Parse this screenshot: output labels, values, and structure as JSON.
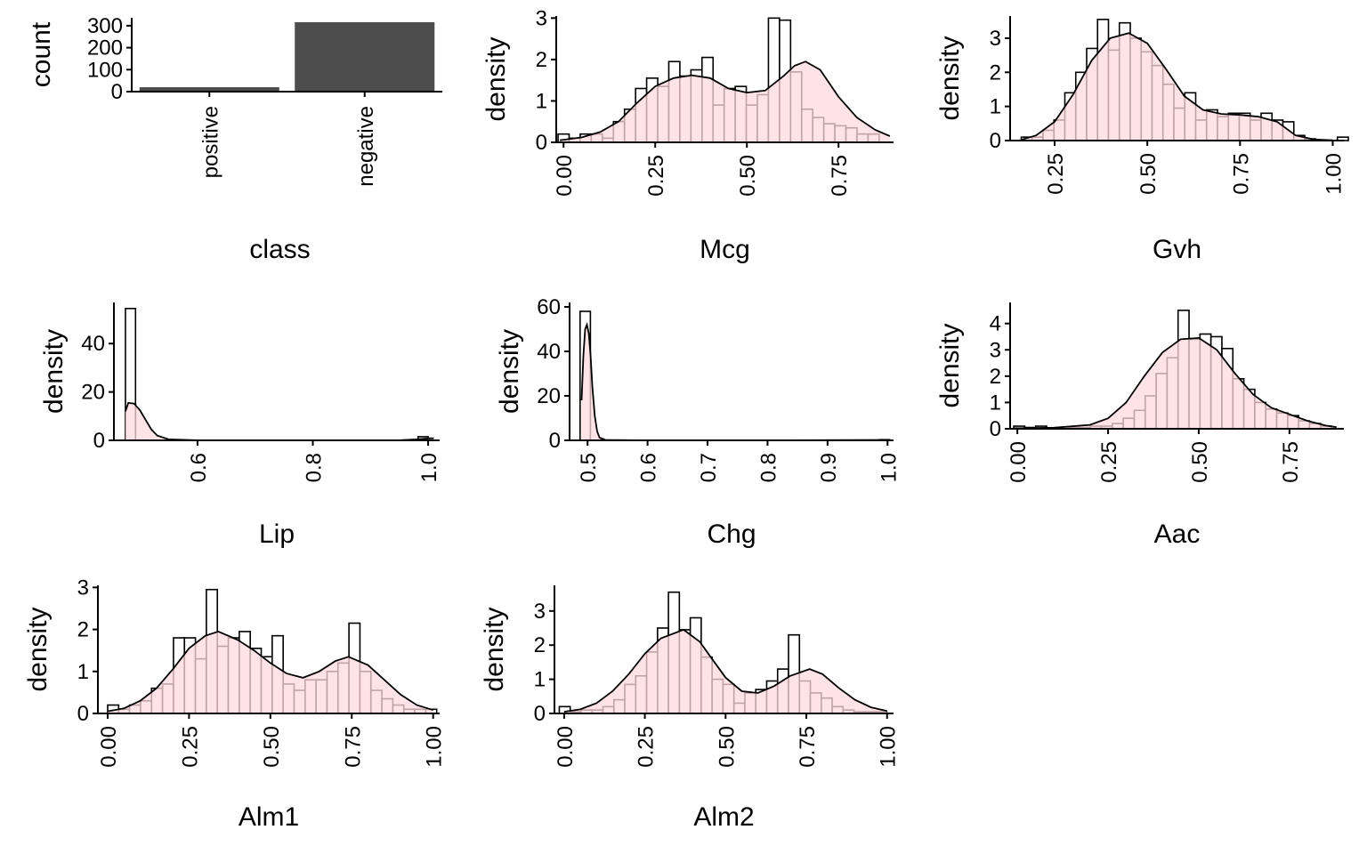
{
  "colors": {
    "bar_fill": "#4d4d4d",
    "hist_fill": "#ffffff",
    "hist_stroke": "#000000",
    "density_fill": "#ffd9dd",
    "axis": "#000000"
  },
  "chart_data": [
    {
      "type": "bar",
      "xlabel": "class",
      "ylabel": "count",
      "categories": [
        "positive",
        "negative"
      ],
      "values": [
        20,
        316
      ],
      "ylim": [
        0,
        336
      ],
      "yticks": [
        0,
        100,
        200,
        300
      ],
      "ytick_labels": [
        "0",
        "100",
        "200",
        "300"
      ],
      "grid": false
    },
    {
      "type": "histogram+density",
      "xlabel": "Mcg",
      "ylabel": "density",
      "xlim": [
        -0.02,
        0.9
      ],
      "ylim": [
        0,
        3.05
      ],
      "xticks": [
        0,
        0.25,
        0.5,
        0.75
      ],
      "xtick_labels": [
        "0.00",
        "0.25",
        "0.50",
        "0.75"
      ],
      "yticks": [
        0,
        1,
        2,
        3
      ],
      "ytick_labels": [
        "0",
        "1",
        "2",
        "3"
      ],
      "bin_start": -0.015,
      "bin_width": 0.0302,
      "hist": [
        0.2,
        0.1,
        0.2,
        0.2,
        0.1,
        0.5,
        0.8,
        1.3,
        1.55,
        1.35,
        1.95,
        1.6,
        1.75,
        2.05,
        0.9,
        1.3,
        1.35,
        0.9,
        1.15,
        3.0,
        2.95,
        1.7,
        0.8,
        0.6,
        0.45,
        0.4,
        0.35,
        0.2,
        0.2
      ],
      "density_x": [
        -0.01,
        0.05,
        0.1,
        0.15,
        0.2,
        0.25,
        0.3,
        0.35,
        0.4,
        0.45,
        0.5,
        0.55,
        0.6,
        0.63,
        0.66,
        0.7,
        0.75,
        0.8,
        0.85,
        0.89
      ],
      "density_y": [
        0.05,
        0.12,
        0.25,
        0.5,
        0.95,
        1.35,
        1.55,
        1.62,
        1.55,
        1.3,
        1.2,
        1.25,
        1.6,
        1.85,
        1.95,
        1.75,
        1.1,
        0.6,
        0.3,
        0.15
      ],
      "grid": false
    },
    {
      "type": "histogram+density",
      "xlabel": "Gvh",
      "ylabel": "density",
      "xlim": [
        0.13,
        1.03
      ],
      "ylim": [
        0,
        3.65
      ],
      "xticks": [
        0.25,
        0.5,
        0.75,
        1.0
      ],
      "xtick_labels": [
        "0.25",
        "0.50",
        "0.75",
        "1.00"
      ],
      "yticks": [
        0,
        1,
        2,
        3
      ],
      "ytick_labels": [
        "0",
        "1",
        "2",
        "3"
      ],
      "bin_start": 0.16,
      "bin_width": 0.0294,
      "hist": [
        0.1,
        0.1,
        0.3,
        0.6,
        1.4,
        2.0,
        2.7,
        3.55,
        2.65,
        3.45,
        3.0,
        2.6,
        2.2,
        1.65,
        0.95,
        1.4,
        0.6,
        0.9,
        0.7,
        0.8,
        0.8,
        0.6,
        0.8,
        0.6,
        0.55,
        0.15,
        0.05,
        0.0,
        0.0,
        0.1
      ],
      "density_x": [
        0.16,
        0.2,
        0.25,
        0.3,
        0.35,
        0.4,
        0.45,
        0.5,
        0.55,
        0.6,
        0.65,
        0.7,
        0.75,
        0.8,
        0.85,
        0.9,
        0.95,
        1.0
      ],
      "density_y": [
        0.02,
        0.15,
        0.55,
        1.35,
        2.35,
        3.0,
        3.15,
        2.85,
        2.1,
        1.3,
        0.9,
        0.78,
        0.75,
        0.7,
        0.55,
        0.15,
        0.03,
        0.01
      ],
      "grid": false
    },
    {
      "type": "histogram+density",
      "xlabel": "Lip",
      "ylabel": "density",
      "xlim": [
        0.455,
        1.02
      ],
      "ylim": [
        0,
        57
      ],
      "xticks": [
        0.6,
        0.8,
        1.0
      ],
      "xtick_labels": [
        "0.6",
        "0.8",
        "1.0"
      ],
      "yticks": [
        0,
        20,
        40
      ],
      "ytick_labels": [
        "0",
        "20",
        "40"
      ],
      "bin_start": 0.475,
      "bin_width": 0.0175,
      "hist": [
        54.5,
        0,
        0,
        0,
        0,
        0,
        0,
        0,
        0,
        0,
        0,
        0,
        0,
        0,
        0,
        0,
        0,
        0,
        0,
        0,
        0,
        0,
        0,
        0,
        0,
        0,
        0,
        0,
        0,
        1.5
      ],
      "density_x": [
        0.475,
        0.48,
        0.49,
        0.5,
        0.51,
        0.52,
        0.53,
        0.55,
        0.6,
        0.8,
        0.95,
        0.98,
        1.0,
        1.01
      ],
      "density_y": [
        12.0,
        15.5,
        15.2,
        12.5,
        8.5,
        4.5,
        2.0,
        0.4,
        0.05,
        0.0,
        0.05,
        0.4,
        0.8,
        0.9
      ],
      "grid": false
    },
    {
      "type": "histogram+density",
      "xlabel": "Chg",
      "ylabel": "density",
      "xlim": [
        0.47,
        1.01
      ],
      "ylim": [
        0,
        62
      ],
      "xticks": [
        0.5,
        0.6,
        0.7,
        0.8,
        0.9,
        1.0
      ],
      "xtick_labels": [
        "0.5",
        "0.6",
        "0.7",
        "0.8",
        "0.9",
        "1.0"
      ],
      "yticks": [
        0,
        20,
        40,
        60
      ],
      "ytick_labels": [
        "0",
        "20",
        "40",
        "60"
      ],
      "bin_start": 0.4875,
      "bin_width": 0.0172,
      "hist": [
        58.0,
        0,
        0,
        0,
        0,
        0,
        0,
        0,
        0,
        0,
        0,
        0,
        0,
        0,
        0,
        0,
        0,
        0,
        0,
        0,
        0,
        0,
        0,
        0,
        0,
        0,
        0,
        0,
        0,
        0.3
      ],
      "density_x": [
        0.49,
        0.493,
        0.496,
        0.499,
        0.502,
        0.505,
        0.508,
        0.512,
        0.516,
        0.52,
        0.53,
        0.6,
        0.8,
        1.0
      ],
      "density_y": [
        18.0,
        38.0,
        50.0,
        52.0,
        48.0,
        38.0,
        24.0,
        11.0,
        4.0,
        1.2,
        0.2,
        0.0,
        0.0,
        0.2
      ],
      "grid": false
    },
    {
      "type": "histogram+density",
      "xlabel": "Aac",
      "ylabel": "density",
      "xlim": [
        -0.02,
        0.9
      ],
      "ylim": [
        0,
        4.8
      ],
      "xticks": [
        0,
        0.25,
        0.5,
        0.75
      ],
      "xtick_labels": [
        "0.00",
        "0.25",
        "0.50",
        "0.75"
      ],
      "yticks": [
        0,
        1,
        2,
        3,
        4
      ],
      "ytick_labels": [
        "0",
        "1",
        "2",
        "3",
        "4"
      ],
      "bin_start": -0.01,
      "bin_width": 0.0302,
      "hist": [
        0.1,
        0.05,
        0.1,
        0.0,
        0.0,
        0.05,
        0.05,
        0.1,
        0.1,
        0.2,
        0.4,
        0.7,
        1.25,
        2.1,
        2.7,
        4.5,
        3.4,
        3.6,
        3.5,
        3.05,
        1.9,
        1.5,
        1.0,
        0.75,
        0.6,
        0.5,
        0.3,
        0.2,
        0.1
      ],
      "density_x": [
        -0.01,
        0.1,
        0.2,
        0.25,
        0.3,
        0.35,
        0.4,
        0.45,
        0.5,
        0.55,
        0.6,
        0.65,
        0.7,
        0.75,
        0.8,
        0.85,
        0.88
      ],
      "density_y": [
        0.02,
        0.04,
        0.15,
        0.4,
        1.0,
        2.0,
        2.9,
        3.4,
        3.45,
        3.0,
        2.1,
        1.3,
        0.8,
        0.55,
        0.3,
        0.12,
        0.06
      ],
      "grid": false
    },
    {
      "type": "histogram+density",
      "xlabel": "Alm1",
      "ylabel": "density",
      "xlim": [
        -0.03,
        1.02
      ],
      "ylim": [
        0,
        3.05
      ],
      "xticks": [
        0,
        0.25,
        0.5,
        0.75,
        1.0
      ],
      "xtick_labels": [
        "0.00",
        "0.25",
        "0.50",
        "0.75",
        "1.00"
      ],
      "yticks": [
        0,
        1,
        2,
        3
      ],
      "ytick_labels": [
        "0",
        "1",
        "2",
        "3"
      ],
      "bin_start": 0.0,
      "bin_width": 0.0337,
      "hist": [
        0.2,
        0.1,
        0.2,
        0.3,
        0.6,
        0.7,
        1.8,
        1.8,
        1.3,
        2.95,
        1.6,
        1.8,
        1.95,
        1.55,
        1.35,
        1.85,
        0.7,
        0.55,
        0.8,
        0.8,
        1.0,
        1.2,
        2.15,
        1.0,
        0.55,
        0.35,
        0.2,
        0.1,
        0.1,
        0.1
      ],
      "density_x": [
        0.0,
        0.05,
        0.1,
        0.15,
        0.2,
        0.25,
        0.3,
        0.34,
        0.4,
        0.45,
        0.5,
        0.55,
        0.6,
        0.65,
        0.7,
        0.74,
        0.8,
        0.85,
        0.9,
        0.95,
        1.0
      ],
      "density_y": [
        0.05,
        0.12,
        0.3,
        0.6,
        1.05,
        1.55,
        1.85,
        1.95,
        1.75,
        1.5,
        1.2,
        0.95,
        0.85,
        1.0,
        1.25,
        1.35,
        1.15,
        0.8,
        0.45,
        0.2,
        0.08
      ],
      "grid": false
    },
    {
      "type": "histogram+density",
      "xlabel": "Alm2",
      "ylabel": "density",
      "xlim": [
        -0.03,
        1.02
      ],
      "ylim": [
        0,
        3.75
      ],
      "xticks": [
        0,
        0.25,
        0.5,
        0.75,
        1.0
      ],
      "xtick_labels": [
        "0.00",
        "0.25",
        "0.50",
        "0.75",
        "1.00"
      ],
      "yticks": [
        0,
        1,
        2,
        3
      ],
      "ytick_labels": [
        "0",
        "1",
        "2",
        "3"
      ],
      "bin_start": -0.015,
      "bin_width": 0.0338,
      "hist": [
        0.2,
        0.05,
        0.1,
        0.1,
        0.2,
        0.4,
        0.85,
        1.1,
        1.8,
        2.5,
        3.55,
        2.45,
        2.8,
        1.65,
        1.0,
        0.85,
        0.3,
        0.6,
        0.7,
        0.95,
        1.3,
        2.3,
        0.95,
        0.6,
        0.45,
        0.2,
        0.1,
        0.05,
        0.05,
        0.05
      ],
      "density_x": [
        0.0,
        0.05,
        0.1,
        0.15,
        0.2,
        0.25,
        0.3,
        0.37,
        0.42,
        0.45,
        0.5,
        0.55,
        0.6,
        0.65,
        0.7,
        0.76,
        0.8,
        0.85,
        0.9,
        0.95,
        1.0
      ],
      "density_y": [
        0.05,
        0.12,
        0.3,
        0.65,
        1.15,
        1.75,
        2.2,
        2.45,
        2.1,
        1.7,
        1.05,
        0.65,
        0.6,
        0.8,
        1.1,
        1.3,
        1.15,
        0.75,
        0.4,
        0.18,
        0.07
      ],
      "grid": false
    }
  ]
}
